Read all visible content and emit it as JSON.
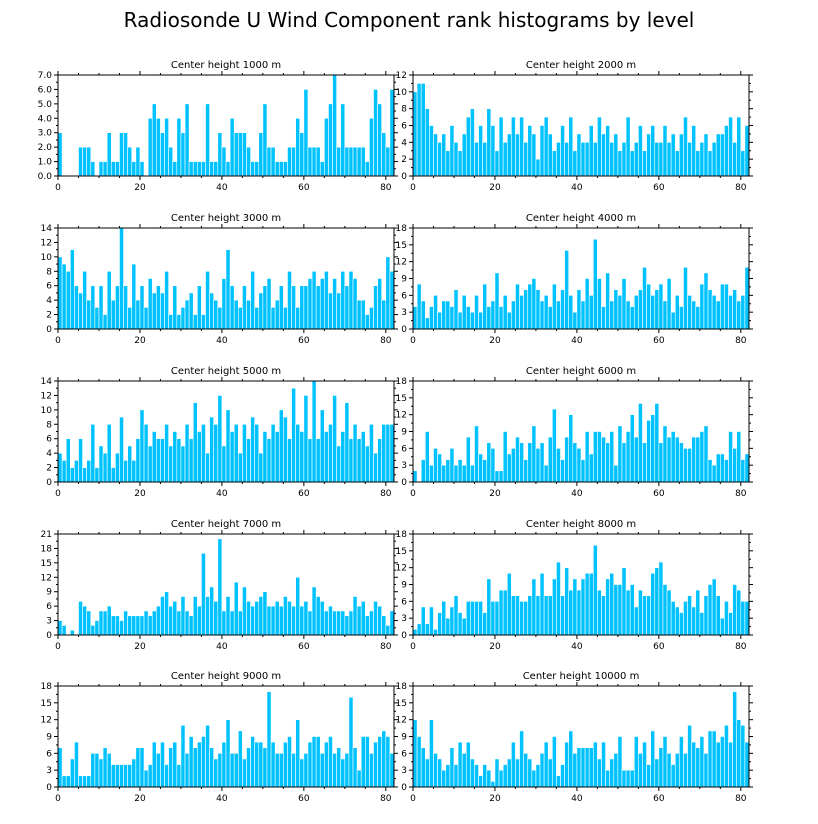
{
  "title": "Radiosonde U Wind Component rank histograms by level",
  "colors": {
    "bar": "#00c2ff",
    "bar_edge": "#ffffff",
    "axis": "#000000"
  },
  "chart_data": [
    {
      "type": "bar",
      "title": "Center height 1000 m",
      "xlim": [
        0,
        82
      ],
      "ylim": [
        0,
        7
      ],
      "xticks": [
        0,
        20,
        40,
        60,
        80
      ],
      "yticks": [
        "0.0",
        "1.0",
        "2.0",
        "3.0",
        "4.0",
        "5.0",
        "6.0",
        "7.0"
      ],
      "values": [
        3,
        0,
        0,
        0,
        0,
        2,
        2,
        2,
        1,
        0,
        1,
        1,
        3,
        1,
        1,
        3,
        3,
        2,
        1,
        2,
        1,
        0,
        4,
        5,
        4,
        3,
        4,
        2,
        1,
        4,
        3,
        5,
        1,
        1,
        1,
        1,
        5,
        1,
        1,
        3,
        2,
        1,
        4,
        3,
        3,
        3,
        2,
        1,
        1,
        3,
        5,
        2,
        2,
        1,
        1,
        1,
        2,
        2,
        4,
        3,
        6,
        2,
        2,
        2,
        1,
        4,
        5,
        7,
        2,
        5,
        2,
        2,
        2,
        2,
        2,
        1,
        4,
        6,
        5,
        3,
        2,
        6
      ]
    },
    {
      "type": "bar",
      "title": "Center height 2000 m",
      "xlim": [
        0,
        82
      ],
      "ylim": [
        0,
        12
      ],
      "xticks": [
        0,
        20,
        40,
        60,
        80
      ],
      "yticks": [
        "0",
        "2",
        "4",
        "6",
        "8",
        "10",
        "12"
      ],
      "values": [
        10,
        11,
        11,
        8,
        6,
        5,
        4,
        5,
        3,
        6,
        4,
        3,
        5,
        7,
        8,
        4,
        6,
        4,
        8,
        6,
        3,
        7,
        4,
        5,
        7,
        5,
        7,
        4,
        6,
        5,
        2,
        6,
        7,
        5,
        3,
        4,
        6,
        4,
        7,
        3,
        5,
        4,
        4,
        6,
        4,
        7,
        5,
        6,
        4,
        5,
        3,
        4,
        7,
        3,
        4,
        6,
        3,
        5,
        6,
        4,
        4,
        6,
        4,
        5,
        3,
        5,
        7,
        4,
        6,
        3,
        4,
        5,
        3,
        4,
        5,
        5,
        6,
        7,
        4,
        7,
        3,
        6
      ]
    },
    {
      "type": "bar",
      "title": "Center height 3000 m",
      "xlim": [
        0,
        82
      ],
      "ylim": [
        0,
        14
      ],
      "xticks": [
        0,
        20,
        40,
        60,
        80
      ],
      "yticks": [
        "0",
        "2",
        "4",
        "6",
        "8",
        "10",
        "12",
        "14"
      ],
      "values": [
        10,
        9,
        8,
        11,
        6,
        5,
        8,
        4,
        6,
        3,
        6,
        2,
        8,
        4,
        6,
        14,
        6,
        3,
        9,
        4,
        6,
        3,
        7,
        5,
        6,
        5,
        8,
        2,
        6,
        2,
        3,
        4,
        5,
        2,
        6,
        2,
        8,
        5,
        4,
        3,
        7,
        11,
        6,
        4,
        3,
        6,
        4,
        8,
        3,
        5,
        6,
        7,
        3,
        4,
        6,
        3,
        8,
        6,
        3,
        6,
        6,
        7,
        8,
        6,
        7,
        8,
        5,
        7,
        5,
        8,
        6,
        8,
        7,
        4,
        4,
        2,
        3,
        6,
        7,
        4,
        10,
        8
      ]
    },
    {
      "type": "bar",
      "title": "Center height 4000 m",
      "xlim": [
        0,
        82
      ],
      "ylim": [
        0,
        18
      ],
      "xticks": [
        0,
        20,
        40,
        60,
        80
      ],
      "yticks": [
        "0",
        "3",
        "6",
        "9",
        "12",
        "15",
        "18"
      ],
      "values": [
        4,
        8,
        5,
        2,
        4,
        6,
        3,
        5,
        5,
        4,
        7,
        3,
        6,
        4,
        3,
        6,
        3,
        8,
        4,
        5,
        10,
        4,
        6,
        3,
        5,
        8,
        6,
        7,
        8,
        9,
        7,
        5,
        6,
        4,
        8,
        5,
        7,
        14,
        6,
        3,
        7,
        5,
        9,
        6,
        16,
        9,
        4,
        10,
        5,
        7,
        6,
        9,
        5,
        4,
        6,
        7,
        11,
        8,
        6,
        7,
        8,
        5,
        9,
        3,
        6,
        4,
        11,
        6,
        5,
        4,
        8,
        10,
        7,
        6,
        5,
        8,
        8,
        6,
        7,
        5,
        6,
        11
      ]
    },
    {
      "type": "bar",
      "title": "Center height 5000 m",
      "xlim": [
        0,
        82
      ],
      "ylim": [
        0,
        14
      ],
      "xticks": [
        0,
        20,
        40,
        60,
        80
      ],
      "yticks": [
        "0",
        "2",
        "4",
        "6",
        "8",
        "10",
        "12",
        "14"
      ],
      "values": [
        4,
        3,
        6,
        2,
        3,
        6,
        2,
        3,
        8,
        2,
        5,
        4,
        8,
        2,
        4,
        9,
        3,
        5,
        3,
        6,
        10,
        8,
        5,
        7,
        6,
        6,
        8,
        5,
        7,
        6,
        5,
        8,
        6,
        11,
        7,
        8,
        4,
        9,
        8,
        12,
        5,
        10,
        7,
        8,
        4,
        8,
        6,
        9,
        8,
        4,
        7,
        6,
        8,
        7,
        10,
        9,
        6,
        13,
        8,
        7,
        12,
        6,
        14,
        6,
        10,
        7,
        8,
        12,
        5,
        7,
        11,
        6,
        8,
        6,
        7,
        5,
        8,
        4,
        6,
        8,
        8,
        8
      ]
    },
    {
      "type": "bar",
      "title": "Center height 6000 m",
      "xlim": [
        0,
        82
      ],
      "ylim": [
        0,
        18
      ],
      "xticks": [
        0,
        20,
        40,
        60,
        80
      ],
      "yticks": [
        "0",
        "3",
        "6",
        "9",
        "12",
        "15",
        "18"
      ],
      "values": [
        2,
        0,
        4,
        9,
        3,
        6,
        5,
        3,
        4,
        6,
        3,
        4,
        3,
        8,
        3,
        10,
        5,
        4,
        7,
        6,
        2,
        2,
        9,
        5,
        6,
        8,
        7,
        4,
        7,
        10,
        6,
        7,
        3,
        8,
        13,
        6,
        4,
        8,
        12,
        7,
        6,
        4,
        9,
        5,
        9,
        9,
        8,
        7,
        9,
        3,
        10,
        7,
        9,
        12,
        8,
        14,
        7,
        11,
        12,
        14,
        7,
        10,
        8,
        9,
        8,
        7,
        6,
        6,
        8,
        8,
        9,
        10,
        4,
        3,
        5,
        5,
        4,
        9,
        6,
        9,
        4,
        5
      ]
    },
    {
      "type": "bar",
      "title": "Center height 7000 m",
      "xlim": [
        0,
        82
      ],
      "ylim": [
        0,
        21
      ],
      "xticks": [
        0,
        20,
        40,
        60,
        80
      ],
      "yticks": [
        "0",
        "3",
        "6",
        "9",
        "12",
        "15",
        "18",
        "21"
      ],
      "values": [
        3,
        2,
        0,
        1,
        0,
        7,
        6,
        5,
        2,
        3,
        5,
        5,
        6,
        4,
        4,
        3,
        5,
        4,
        4,
        4,
        4,
        5,
        4,
        5,
        6,
        8,
        9,
        6,
        7,
        5,
        8,
        5,
        4,
        8,
        6,
        17,
        8,
        10,
        7,
        20,
        5,
        8,
        5,
        11,
        5,
        10,
        7,
        6,
        7,
        8,
        9,
        6,
        6,
        7,
        6,
        8,
        7,
        6,
        12,
        6,
        7,
        5,
        10,
        8,
        7,
        5,
        6,
        5,
        5,
        5,
        4,
        5,
        8,
        6,
        7,
        4,
        5,
        7,
        6,
        4,
        2,
        5
      ]
    },
    {
      "type": "bar",
      "title": "Center height 8000 m",
      "xlim": [
        0,
        82
      ],
      "ylim": [
        0,
        18
      ],
      "xticks": [
        0,
        20,
        40,
        60,
        80
      ],
      "yticks": [
        "0",
        "3",
        "6",
        "9",
        "12",
        "15",
        "18"
      ],
      "values": [
        1,
        2,
        5,
        2,
        5,
        1,
        4,
        6,
        3,
        5,
        7,
        4,
        3,
        6,
        6,
        6,
        6,
        4,
        10,
        6,
        6,
        8,
        8,
        11,
        7,
        7,
        6,
        6,
        7,
        10,
        7,
        11,
        7,
        7,
        10,
        13,
        7,
        12,
        8,
        10,
        8,
        10,
        11,
        11,
        16,
        8,
        7,
        10,
        11,
        9,
        9,
        12,
        8,
        9,
        5,
        8,
        7,
        7,
        11,
        12,
        13,
        9,
        8,
        6,
        5,
        4,
        6,
        7,
        5,
        8,
        4,
        7,
        9,
        10,
        7,
        3,
        6,
        4,
        9,
        8,
        6,
        6
      ]
    },
    {
      "type": "bar",
      "title": "Center height 9000 m",
      "xlim": [
        0,
        82
      ],
      "ylim": [
        0,
        18
      ],
      "xticks": [
        0,
        20,
        40,
        60,
        80
      ],
      "yticks": [
        "0",
        "3",
        "6",
        "9",
        "12",
        "15",
        "18"
      ],
      "values": [
        7,
        2,
        2,
        5,
        8,
        2,
        2,
        2,
        6,
        6,
        5,
        7,
        6,
        4,
        4,
        4,
        4,
        4,
        5,
        7,
        7,
        3,
        4,
        8,
        6,
        8,
        4,
        7,
        8,
        4,
        11,
        6,
        9,
        7,
        8,
        9,
        11,
        7,
        5,
        6,
        8,
        12,
        6,
        6,
        10,
        5,
        7,
        9,
        8,
        8,
        7,
        17,
        8,
        6,
        6,
        8,
        9,
        6,
        12,
        5,
        6,
        8,
        9,
        9,
        6,
        8,
        9,
        6,
        7,
        5,
        6,
        16,
        7,
        3,
        9,
        9,
        6,
        8,
        9,
        10,
        9,
        6
      ]
    },
    {
      "type": "bar",
      "title": "Center height 10000 m",
      "xlim": [
        0,
        82
      ],
      "ylim": [
        0,
        18
      ],
      "xticks": [
        0,
        20,
        40,
        60,
        80
      ],
      "yticks": [
        "0",
        "3",
        "6",
        "9",
        "12",
        "15",
        "18"
      ],
      "values": [
        12,
        9,
        7,
        5,
        12,
        6,
        5,
        3,
        4,
        7,
        4,
        8,
        6,
        8,
        5,
        4,
        2,
        4,
        3,
        1,
        5,
        3,
        4,
        5,
        8,
        5,
        10,
        6,
        5,
        3,
        4,
        6,
        8,
        5,
        9,
        2,
        4,
        8,
        10,
        6,
        7,
        7,
        7,
        7,
        8,
        5,
        8,
        3,
        5,
        6,
        9,
        3,
        3,
        3,
        9,
        6,
        8,
        4,
        10,
        5,
        7,
        9,
        6,
        4,
        6,
        9,
        6,
        11,
        8,
        7,
        9,
        6,
        10,
        10,
        8,
        9,
        11,
        8,
        17,
        12,
        11,
        8
      ]
    }
  ]
}
